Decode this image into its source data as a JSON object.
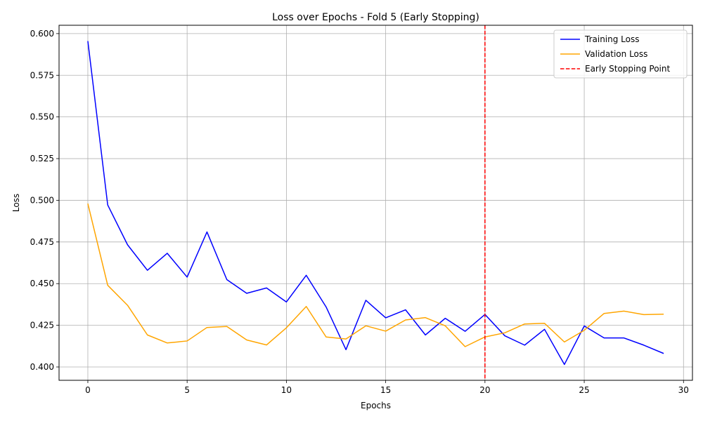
{
  "chart_data": {
    "type": "line",
    "title": "Loss over Epochs - Fold 5 (Early Stopping)",
    "xlabel": "Epochs",
    "ylabel": "Loss",
    "xlim": [
      -1.45,
      30.45
    ],
    "ylim": [
      0.392,
      0.605
    ],
    "xticks": [
      0,
      5,
      10,
      15,
      20,
      25,
      30
    ],
    "yticks": [
      0.4,
      0.425,
      0.45,
      0.475,
      0.5,
      0.525,
      0.55,
      0.575,
      0.6
    ],
    "xtick_labels": [
      "0",
      "5",
      "10",
      "15",
      "20",
      "25",
      "30"
    ],
    "ytick_labels": [
      "0.400",
      "0.425",
      "0.450",
      "0.475",
      "0.500",
      "0.525",
      "0.550",
      "0.575",
      "0.600"
    ],
    "grid": true,
    "legend_position": "upper right",
    "x": [
      0,
      1,
      2,
      3,
      4,
      5,
      6,
      7,
      8,
      9,
      10,
      11,
      12,
      13,
      14,
      15,
      16,
      17,
      18,
      19,
      20,
      21,
      22,
      23,
      24,
      25,
      26,
      27,
      28,
      29
    ],
    "series": [
      {
        "name": "Training Loss",
        "color": "#0000ff",
        "style": "solid",
        "values": [
          0.5955,
          0.4972,
          0.4733,
          0.458,
          0.4682,
          0.4539,
          0.481,
          0.4524,
          0.4442,
          0.4474,
          0.439,
          0.455,
          0.436,
          0.4104,
          0.44,
          0.4295,
          0.4343,
          0.4192,
          0.4292,
          0.4214,
          0.4315,
          0.4187,
          0.4131,
          0.4226,
          0.4015,
          0.4246,
          0.4174,
          0.4174,
          0.4131,
          0.4081
        ]
      },
      {
        "name": "Validation Loss",
        "color": "#ffa500",
        "style": "solid",
        "values": [
          0.498,
          0.449,
          0.437,
          0.4192,
          0.4144,
          0.4156,
          0.4237,
          0.4243,
          0.4162,
          0.4132,
          0.4235,
          0.4363,
          0.418,
          0.4168,
          0.4247,
          0.4215,
          0.4282,
          0.4296,
          0.4247,
          0.4122,
          0.418,
          0.4205,
          0.4258,
          0.4262,
          0.415,
          0.422,
          0.4321,
          0.4335,
          0.4314,
          0.4317
        ]
      }
    ],
    "vlines": [
      {
        "name": "Early Stopping Point",
        "x": 20,
        "color": "#ff0000",
        "style": "dashed"
      }
    ]
  }
}
